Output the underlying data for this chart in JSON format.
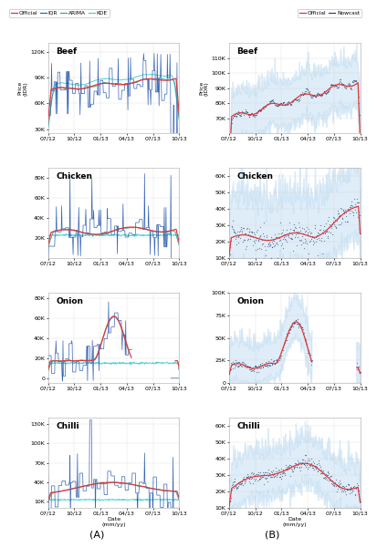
{
  "commodities": [
    "Beef",
    "Chicken",
    "Onion",
    "Chilli"
  ],
  "legend_A": [
    "Official",
    "IQR",
    "ARIMA",
    "KDE"
  ],
  "legend_B": [
    "Official",
    "Nowcast"
  ],
  "x_ticks": [
    "07/12",
    "10/12",
    "01/13",
    "04/13",
    "07/13",
    "10/13"
  ],
  "x_label": "Date\n(mm/yy)",
  "y_label": "Price\n(IDR)",
  "colors": {
    "official": "#e03030",
    "iqr": "#2255aa",
    "arima": "#339999",
    "kde": "#33cccc",
    "nowcast_line": "#1a3a6a",
    "nowcast_fill": "#b8d8f0",
    "background": "#ffffff"
  },
  "beef_A": {
    "ylim": [
      25000,
      130000
    ],
    "yticks": [
      30000,
      60000,
      90000,
      120000
    ],
    "ytick_labels": [
      "30K",
      "60K",
      "90K",
      "120K"
    ]
  },
  "chicken_A": {
    "ylim": [
      0,
      90000
    ],
    "yticks": [
      20000,
      40000,
      60000,
      80000
    ],
    "ytick_labels": [
      "20K",
      "40K",
      "60K",
      "80K"
    ]
  },
  "onion_A": {
    "ylim": [
      -5000,
      85000
    ],
    "yticks": [
      0,
      20000,
      40000,
      60000,
      80000
    ],
    "ytick_labels": [
      "0",
      "20K",
      "40K",
      "60K",
      "80K"
    ]
  },
  "chilli_A": {
    "ylim": [
      0,
      140000
    ],
    "yticks": [
      10000,
      40000,
      70000,
      100000,
      130000
    ],
    "ytick_labels": [
      "10K",
      "40K",
      "70K",
      "100K",
      "130K"
    ]
  },
  "beef_B": {
    "ylim": [
      60000,
      120000
    ],
    "yticks": [
      70000,
      80000,
      90000,
      100000,
      110000
    ],
    "ytick_labels": [
      "70K",
      "80K",
      "90K",
      "100K",
      "110K"
    ]
  },
  "chicken_B": {
    "ylim": [
      10000,
      65000
    ],
    "yticks": [
      10000,
      20000,
      30000,
      40000,
      50000,
      60000
    ],
    "ytick_labels": [
      "10K",
      "20K",
      "30K",
      "40K",
      "50K",
      "60K"
    ]
  },
  "onion_B": {
    "ylim": [
      0,
      100000
    ],
    "yticks": [
      0,
      25000,
      50000,
      75000,
      100000
    ],
    "ytick_labels": [
      "0",
      "25K",
      "50K",
      "75K",
      "100K"
    ]
  },
  "chilli_B": {
    "ylim": [
      10000,
      65000
    ],
    "yticks": [
      10000,
      20000,
      30000,
      40000,
      50000,
      60000
    ],
    "ytick_labels": [
      "10K",
      "20K",
      "30K",
      "40K",
      "50K",
      "60K"
    ]
  }
}
